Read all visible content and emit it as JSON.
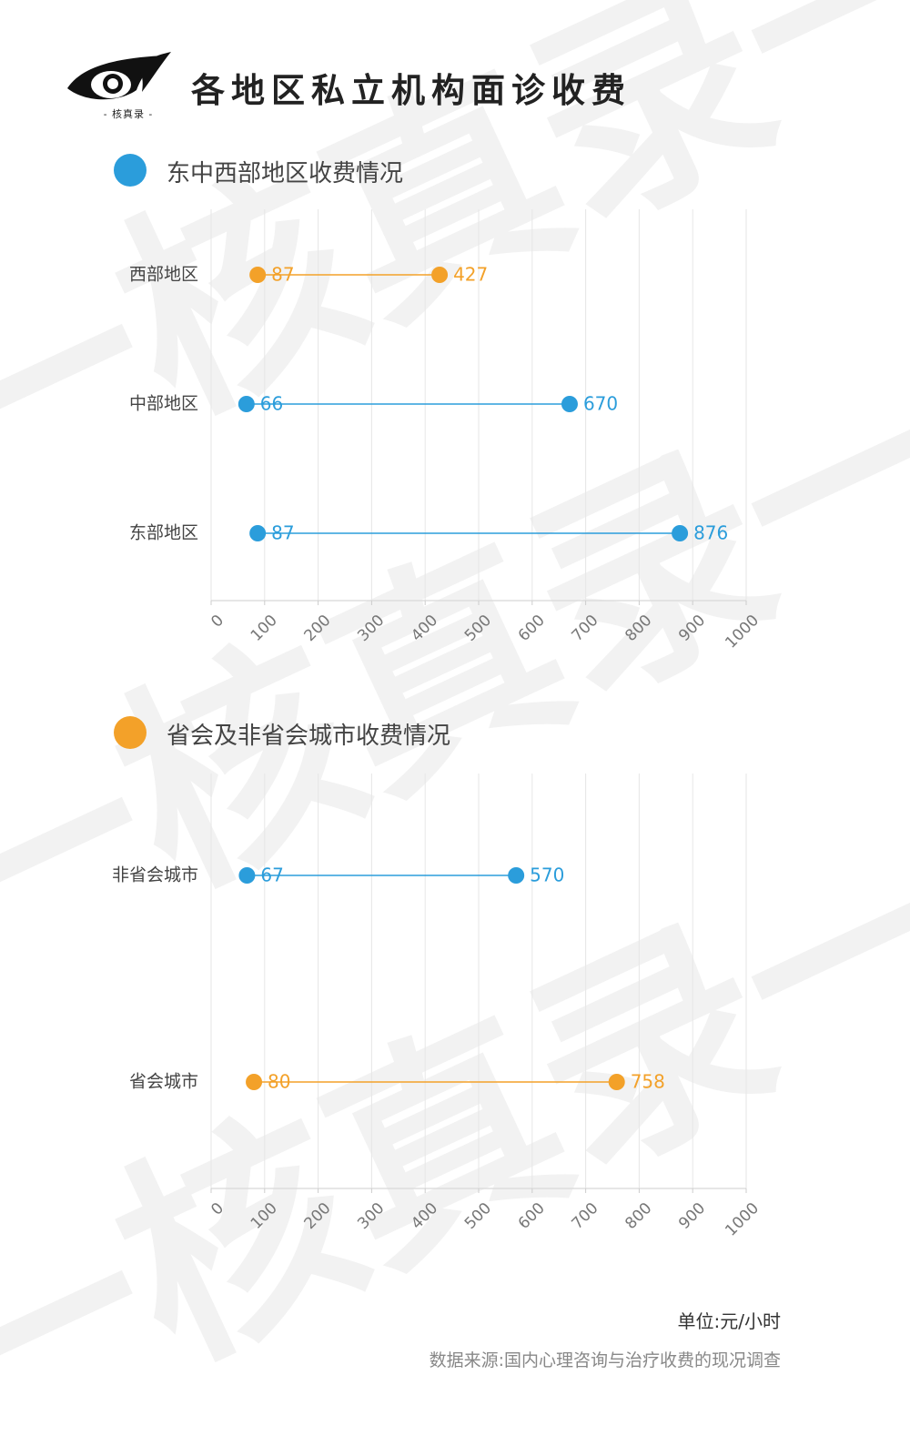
{
  "title": "各地区私立机构面诊收费",
  "logo": {
    "caption": "- 核真录 -"
  },
  "watermark_text": "一核真录一",
  "colors": {
    "blue": "#2b9ddb",
    "orange": "#f3a129",
    "grid": "#e6e6e6",
    "axis_text": "#777777"
  },
  "sections": [
    {
      "title": "东中西部地区收费情况",
      "color": "#2b9ddb"
    },
    {
      "title": "省会及非省会城市收费情况",
      "color": "#f3a129"
    }
  ],
  "footer": {
    "unit": "单位:元/小时",
    "source": "数据来源:国内心理咨询与治疗收费的现况调查"
  },
  "chart_data": [
    {
      "type": "dumbbell",
      "title": "东中西部地区收费情况",
      "xlim": [
        0,
        1000
      ],
      "xticks": [
        0,
        100,
        200,
        300,
        400,
        500,
        600,
        700,
        800,
        900,
        1000
      ],
      "grid": true,
      "rows": [
        {
          "category": "西部地区",
          "min": 87,
          "max": 427,
          "color": "#f3a129"
        },
        {
          "category": "中部地区",
          "min": 66,
          "max": 670,
          "color": "#2b9ddb"
        },
        {
          "category": "东部地区",
          "min": 87,
          "max": 876,
          "color": "#2b9ddb"
        }
      ]
    },
    {
      "type": "dumbbell",
      "title": "省会及非省会城市收费情况",
      "xlim": [
        0,
        1000
      ],
      "xticks": [
        0,
        100,
        200,
        300,
        400,
        500,
        600,
        700,
        800,
        900,
        1000
      ],
      "grid": true,
      "rows": [
        {
          "category": "非省会城市",
          "min": 67,
          "max": 570,
          "color": "#2b9ddb"
        },
        {
          "category": "省会城市",
          "min": 80,
          "max": 758,
          "color": "#f3a129"
        }
      ]
    }
  ]
}
